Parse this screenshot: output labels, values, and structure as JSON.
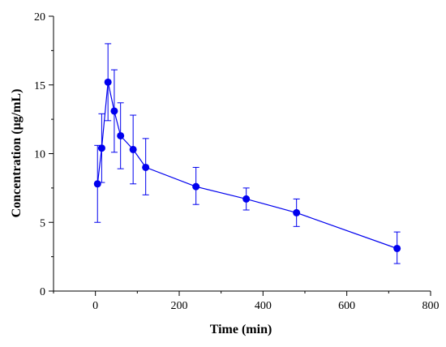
{
  "chart_data": {
    "type": "line",
    "title": "",
    "xlabel": "Time (min)",
    "ylabel": "Concentration (μg/mL)",
    "xlim": [
      -100,
      800
    ],
    "ylim": [
      0,
      20
    ],
    "xticks": [
      0,
      200,
      400,
      600,
      800
    ],
    "yticks": [
      0,
      5,
      10,
      15,
      20
    ],
    "grid": false,
    "legend": "none",
    "series": [
      {
        "color": "#0000ee",
        "markers": "filled-circle",
        "x": [
          5,
          15,
          30,
          45,
          60,
          90,
          120,
          240,
          360,
          480,
          720
        ],
        "y": [
          7.8,
          10.4,
          15.2,
          13.1,
          11.3,
          10.3,
          9.0,
          7.6,
          6.7,
          5.7,
          3.1
        ],
        "err_lower": [
          2.8,
          2.5,
          2.8,
          3.0,
          2.4,
          2.5,
          2.0,
          1.3,
          0.8,
          1.0,
          1.1
        ],
        "err_upper": [
          2.8,
          2.5,
          2.8,
          3.0,
          2.4,
          2.5,
          2.1,
          1.4,
          0.8,
          1.0,
          1.2
        ]
      }
    ]
  }
}
